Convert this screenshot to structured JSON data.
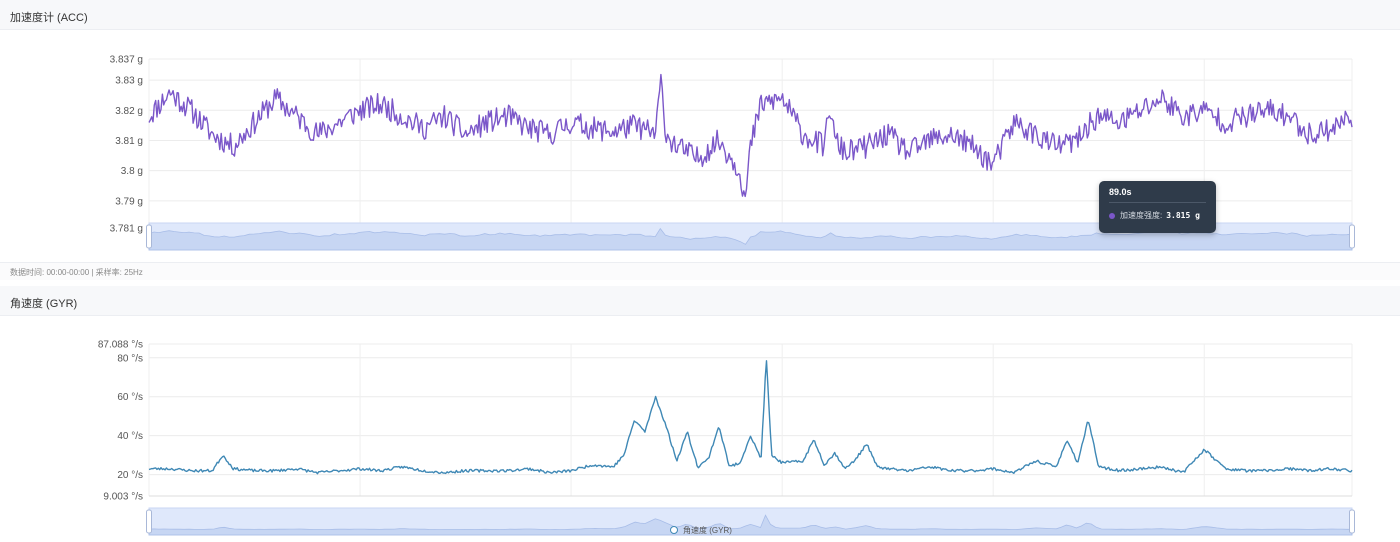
{
  "panels": [
    {
      "title": "加速度计 (ACC)",
      "footer": "数据时间: 00:00-00:00 | 采样率: 25Hz"
    },
    {
      "title": "角速度 (GYR)"
    }
  ],
  "tooltip": {
    "title": "89.0s",
    "series": "加速度强度:",
    "value": "3.815 g",
    "color": "#7b57c9"
  },
  "legend": {
    "label": "角速度 (GYR)",
    "color": "#3f88b5"
  },
  "chart_data": [
    {
      "type": "line",
      "name": "acc-chart",
      "series_name": "加速度强度",
      "color": "#7b57c9",
      "unit": "g",
      "x_range": [
        0,
        114
      ],
      "ylim": [
        3.781,
        3.837
      ],
      "y_ticks": [
        3.781,
        3.79,
        3.8,
        3.81,
        3.82,
        3.83,
        3.837
      ],
      "y_tick_labels": [
        "3.781 g",
        "3.79 g",
        "3.8 g",
        "3.81 g",
        "3.82 g",
        "3.83 g",
        "3.837 g"
      ],
      "x_gridlines": [
        0,
        20,
        40,
        60,
        80,
        100,
        114
      ],
      "grid": true,
      "x": [
        0,
        2,
        4,
        6,
        8,
        10,
        12,
        14,
        16,
        18,
        20,
        22,
        24,
        26,
        28,
        30,
        32,
        34,
        36,
        38,
        40,
        42,
        44,
        46,
        48,
        48.5,
        49,
        50,
        52,
        54,
        56,
        56.5,
        57,
        58,
        60,
        62,
        64,
        64.5,
        65,
        66,
        68,
        70,
        72,
        74,
        76,
        78,
        80,
        82,
        84,
        86,
        88,
        89,
        90,
        92,
        94,
        96,
        98,
        100,
        102,
        104,
        106,
        108,
        110,
        112,
        114
      ],
      "values": [
        3.818,
        3.826,
        3.82,
        3.812,
        3.808,
        3.816,
        3.824,
        3.818,
        3.812,
        3.816,
        3.82,
        3.822,
        3.818,
        3.814,
        3.818,
        3.812,
        3.816,
        3.818,
        3.814,
        3.812,
        3.816,
        3.814,
        3.813,
        3.815,
        3.812,
        3.83,
        3.812,
        3.808,
        3.804,
        3.81,
        3.8,
        3.79,
        3.808,
        3.822,
        3.824,
        3.812,
        3.808,
        3.822,
        3.81,
        3.806,
        3.808,
        3.812,
        3.806,
        3.81,
        3.812,
        3.808,
        3.802,
        3.816,
        3.812,
        3.808,
        3.81,
        3.815,
        3.818,
        3.816,
        3.82,
        3.824,
        3.818,
        3.82,
        3.816,
        3.818,
        3.82,
        3.818,
        3.812,
        3.814,
        3.818
      ]
    },
    {
      "type": "line",
      "name": "gyr-chart",
      "series_name": "角速度 (GYR)",
      "color": "#3f88b5",
      "unit": "°/s",
      "x_range": [
        0,
        114
      ],
      "ylim": [
        9.003,
        87.088
      ],
      "y_ticks": [
        9.003,
        20,
        40,
        60,
        80,
        87.088
      ],
      "y_tick_labels": [
        "9.003 °/s",
        "20 °/s",
        "40 °/s",
        "60 °/s",
        "80 °/s",
        "87.088 °/s"
      ],
      "x_gridlines": [
        0,
        20,
        40,
        60,
        80,
        100,
        114
      ],
      "grid": true,
      "x": [
        0,
        2,
        4,
        6,
        7,
        8,
        10,
        12,
        14,
        16,
        18,
        20,
        22,
        24,
        26,
        28,
        30,
        32,
        34,
        36,
        38,
        40,
        42,
        44,
        45,
        46,
        47,
        48,
        49,
        50,
        51,
        52,
        53,
        54,
        55,
        56,
        57,
        58,
        58.5,
        59,
        60,
        62,
        63,
        64,
        65,
        66,
        67,
        68,
        69,
        70,
        72,
        74,
        76,
        78,
        80,
        82,
        84,
        86,
        87,
        88,
        89,
        90,
        92,
        94,
        96,
        98,
        100,
        102,
        104,
        106,
        108,
        110,
        112,
        114
      ],
      "values": [
        23,
        23,
        22,
        22,
        30,
        23,
        22,
        22,
        23,
        21,
        22,
        23,
        22,
        24,
        22,
        21,
        22,
        22,
        22,
        23,
        21,
        22,
        25,
        24,
        30,
        48,
        42,
        60,
        45,
        27,
        42,
        24,
        28,
        45,
        24,
        26,
        40,
        28,
        80,
        30,
        26,
        27,
        38,
        25,
        31,
        23,
        28,
        36,
        24,
        23,
        22,
        24,
        22,
        22,
        23,
        21,
        27,
        24,
        38,
        26,
        48,
        24,
        22,
        23,
        24,
        21,
        33,
        23,
        22,
        22,
        23,
        22,
        23,
        22
      ]
    }
  ]
}
